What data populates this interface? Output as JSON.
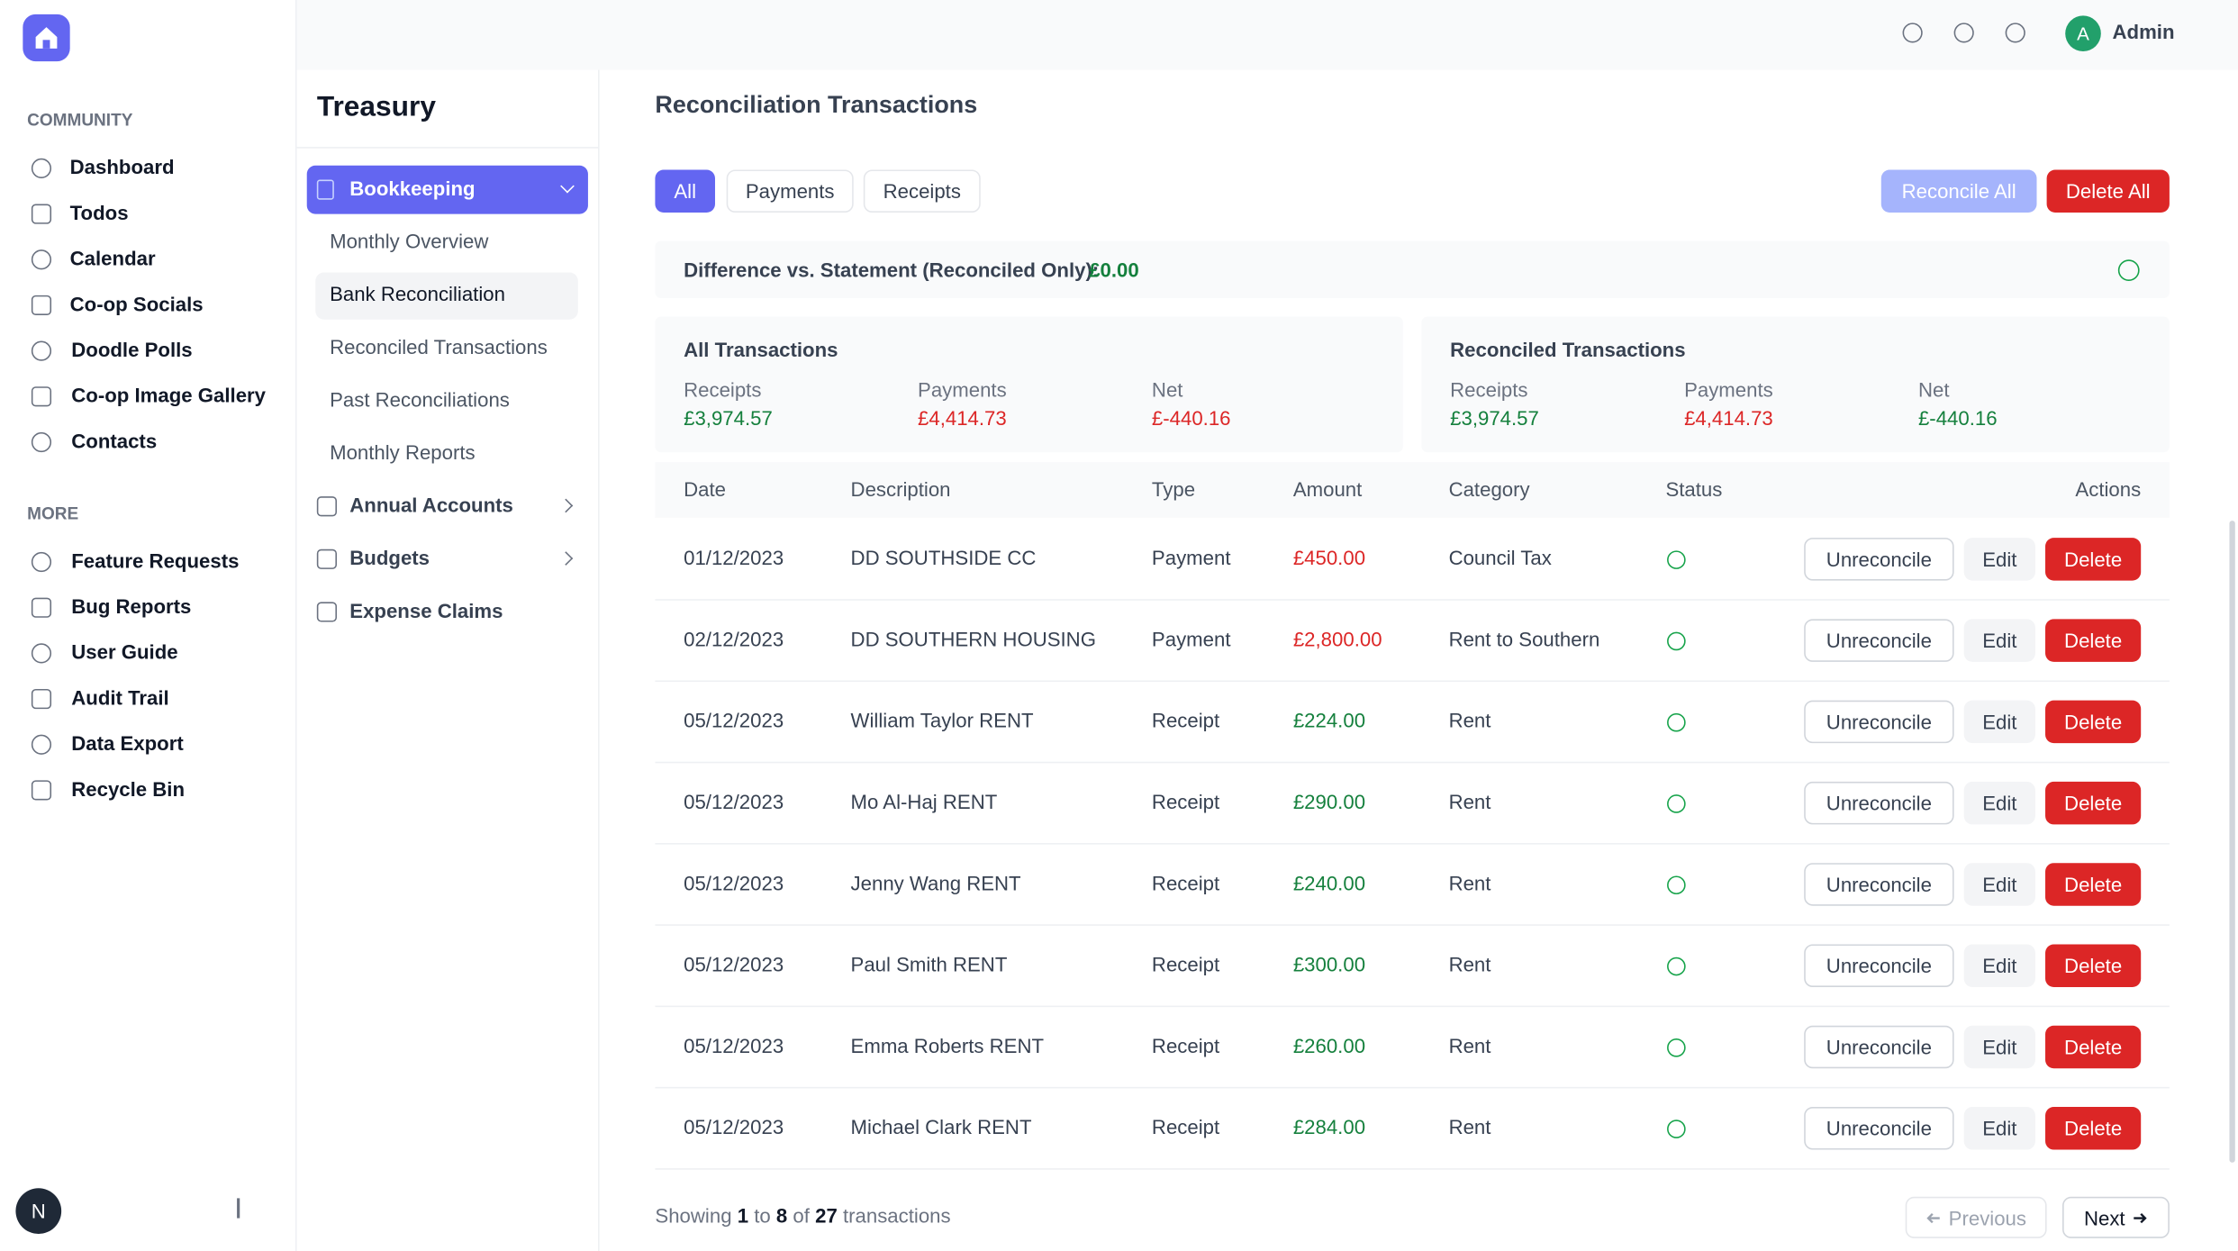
{
  "app": {
    "user_initial": "A",
    "user_name": "Admin"
  },
  "sidebar": {
    "community_heading": "COMMUNITY",
    "community": [
      "Dashboard",
      "Todos",
      "Calendar",
      "Co-op Socials",
      "Doodle Polls",
      "Co-op Image Gallery",
      "Contacts"
    ],
    "more_heading": "MORE",
    "more": [
      "Feature Requests",
      "Bug Reports",
      "User Guide",
      "Audit Trail",
      "Data Export",
      "Recycle Bin"
    ],
    "avatar": "N"
  },
  "treasury": {
    "title": "Treasury",
    "menu": [
      {
        "label": "Bookkeeping",
        "children": [
          "Monthly Overview",
          "Bank Reconciliation",
          "Reconciled Transactions",
          "Past Reconciliations",
          "Monthly Reports"
        ]
      },
      {
        "label": "Annual Accounts"
      },
      {
        "label": "Budgets"
      },
      {
        "label": "Expense Claims"
      }
    ]
  },
  "page": {
    "title": "Reconciliation Transactions",
    "tabs": [
      "All",
      "Payments",
      "Receipts"
    ],
    "actions": [
      "Reconcile All",
      "Delete All"
    ],
    "difference_label": "Difference vs. Statement (Reconciled Only):",
    "difference_value": "£0.00",
    "summaries": [
      {
        "title": "All Transactions",
        "items": [
          {
            "label": "Receipts",
            "value": "£3,974.57",
            "color": "#15803d"
          },
          {
            "label": "Payments",
            "value": "£4,414.73",
            "color": "#dc2626"
          },
          {
            "label": "Net",
            "value": "£-440.16",
            "color": "#dc2626"
          }
        ]
      },
      {
        "title": "Reconciled Transactions",
        "items": [
          {
            "label": "Receipts",
            "value": "£3,974.57",
            "color": "#15803d"
          },
          {
            "label": "Payments",
            "value": "£4,414.73",
            "color": "#dc2626"
          },
          {
            "label": "Net",
            "value": "£-440.16",
            "color": "#15803d"
          }
        ]
      }
    ],
    "table": {
      "columns": [
        "Date",
        "Description",
        "Type",
        "Amount",
        "Category",
        "Status",
        "Actions"
      ],
      "rows": [
        {
          "cells": [
            "01/12/2023",
            "DD SOUTHSIDE CC",
            "Payment",
            "£450.00",
            "Council Tax"
          ],
          "color": "#dc2626"
        },
        {
          "cells": [
            "02/12/2023",
            "DD SOUTHERN HOUSING",
            "Payment",
            "£2,800.00",
            "Rent to Southern"
          ],
          "color": "#dc2626"
        },
        {
          "cells": [
            "05/12/2023",
            "William Taylor RENT",
            "Receipt",
            "£224.00",
            "Rent"
          ],
          "color": "#15803d"
        },
        {
          "cells": [
            "05/12/2023",
            "Mo Al-Haj RENT",
            "Receipt",
            "£290.00",
            "Rent"
          ],
          "color": "#15803d"
        },
        {
          "cells": [
            "05/12/2023",
            "Jenny Wang RENT",
            "Receipt",
            "£240.00",
            "Rent"
          ],
          "color": "#15803d"
        },
        {
          "cells": [
            "05/12/2023",
            "Paul Smith RENT",
            "Receipt",
            "£300.00",
            "Rent"
          ],
          "color": "#15803d"
        },
        {
          "cells": [
            "05/12/2023",
            "Emma Roberts RENT",
            "Receipt",
            "£260.00",
            "Rent"
          ],
          "color": "#15803d"
        },
        {
          "cells": [
            "05/12/2023",
            "Michael Clark RENT",
            "Receipt",
            "£284.00",
            "Rent"
          ],
          "color": "#15803d"
        }
      ],
      "row_actions": [
        "Unreconcile",
        "Edit",
        "Delete"
      ]
    },
    "pagination": {
      "text": [
        "Showing",
        "1",
        "to",
        "8",
        "of",
        "27",
        "transactions"
      ],
      "previous": "Previous",
      "next": "Next"
    }
  }
}
